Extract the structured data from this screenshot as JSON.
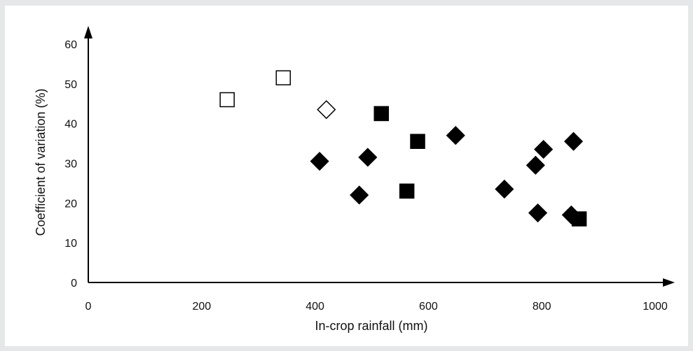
{
  "chart_data": {
    "type": "scatter",
    "xlabel": "In-crop rainfall (mm)",
    "ylabel": "Coefficient of variation (%)",
    "xlim": [
      0,
      1000
    ],
    "ylim": [
      0,
      60
    ],
    "x_ticks": [
      "0",
      "200",
      "400",
      "600",
      "800",
      "1000"
    ],
    "y_ticks": [
      "0",
      "10",
      "20",
      "30",
      "40",
      "50",
      "60"
    ],
    "grid": false,
    "legend": "none",
    "series": [
      {
        "marker": "diamond",
        "filled": true,
        "color": "#000000",
        "points": [
          {
            "x": 408,
            "y": 30.5
          },
          {
            "x": 478,
            "y": 22
          },
          {
            "x": 493,
            "y": 31.5
          },
          {
            "x": 648,
            "y": 37
          },
          {
            "x": 734,
            "y": 23.5
          },
          {
            "x": 789,
            "y": 29.5
          },
          {
            "x": 793,
            "y": 17.5
          },
          {
            "x": 803,
            "y": 33.5
          },
          {
            "x": 852,
            "y": 17
          },
          {
            "x": 856,
            "y": 35.5
          }
        ]
      },
      {
        "marker": "square",
        "filled": true,
        "color": "#000000",
        "points": [
          {
            "x": 517,
            "y": 42.5
          },
          {
            "x": 562,
            "y": 23
          },
          {
            "x": 581,
            "y": 35.5
          },
          {
            "x": 866,
            "y": 16
          }
        ]
      },
      {
        "marker": "square",
        "filled": false,
        "color": "#000000",
        "points": [
          {
            "x": 245,
            "y": 46
          },
          {
            "x": 344,
            "y": 51.5
          }
        ]
      },
      {
        "marker": "diamond",
        "filled": false,
        "color": "#000000",
        "points": [
          {
            "x": 420,
            "y": 43.5
          }
        ]
      }
    ]
  }
}
